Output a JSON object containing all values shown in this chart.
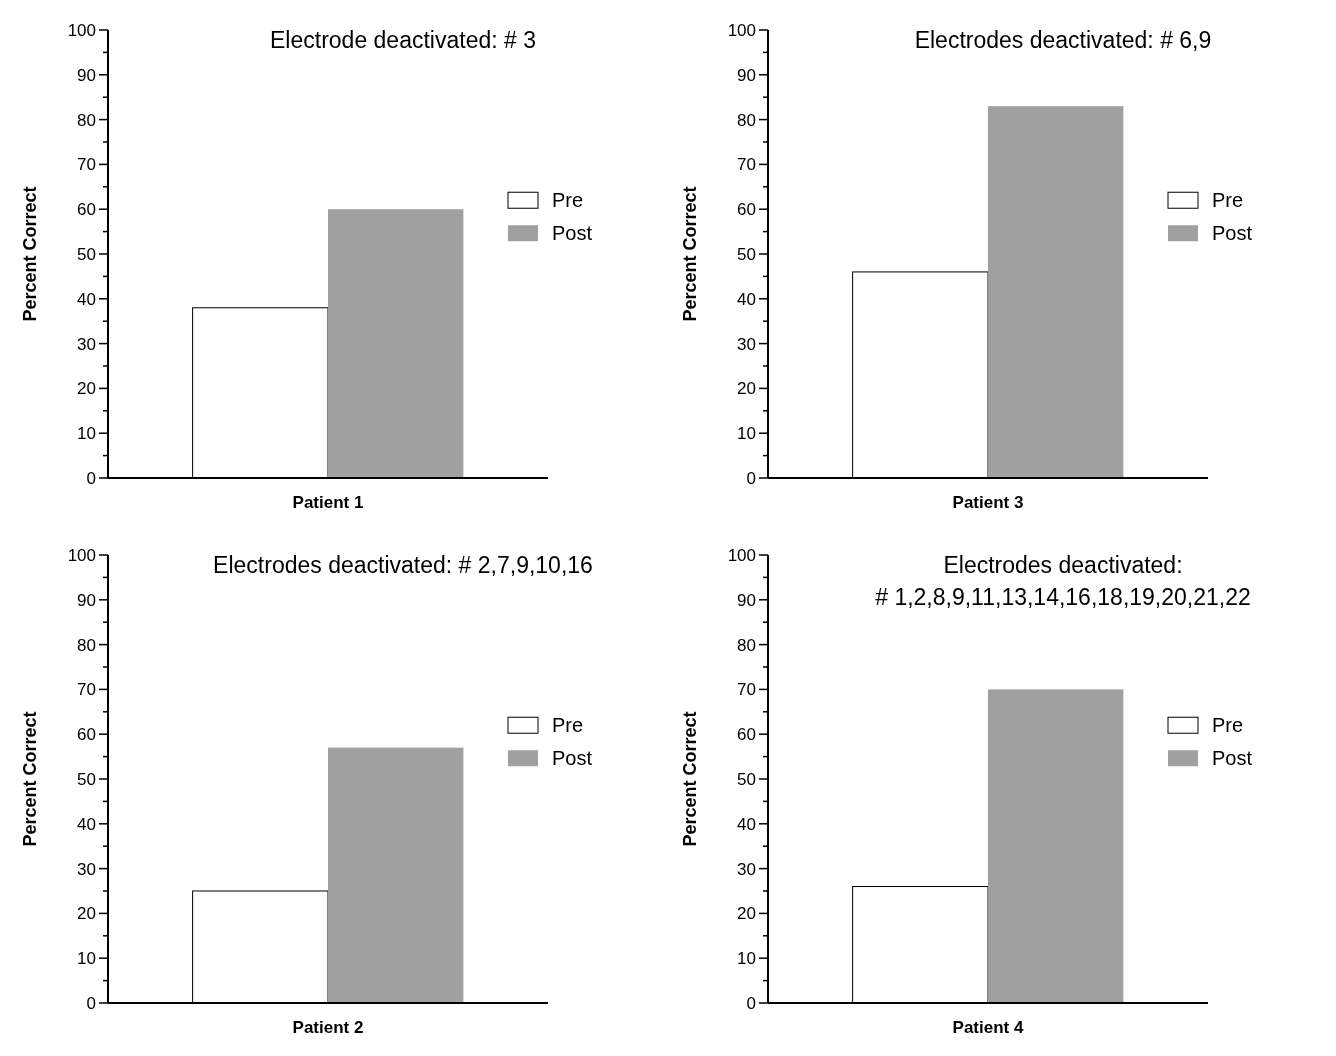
{
  "chart_data": [
    {
      "type": "bar",
      "title": "Electrode deactivated: # 3",
      "categories": [
        "Patient 1"
      ],
      "ylabel": "Percent Correct",
      "ylim": [
        0,
        100
      ],
      "yticks": [
        0,
        {
          "value": 5,
          "label": null
        },
        10,
        {
          "value": 15,
          "label": null
        },
        20,
        {
          "value": 25,
          "label": null
        },
        30,
        {
          "value": 35,
          "label": null
        },
        40,
        {
          "value": 45,
          "label": null
        },
        50,
        {
          "value": 55,
          "label": null
        },
        60,
        {
          "value": 65,
          "label": null
        },
        70,
        {
          "value": 75,
          "label": null
        },
        80,
        {
          "value": 85,
          "label": null
        },
        90,
        {
          "value": 95,
          "label": null
        },
        100
      ],
      "legend": "right",
      "grid": false,
      "series": [
        {
          "name": "Pre",
          "color": "#ffffff",
          "values": [
            38
          ]
        },
        {
          "name": "Post",
          "color": "#a0a0a0",
          "values": [
            60
          ]
        }
      ]
    },
    {
      "type": "bar",
      "title": "Electrodes deactivated: # 6,9",
      "categories": [
        "Patient 3"
      ],
      "ylabel": "Percent Correct",
      "ylim": [
        0,
        100
      ],
      "yticks": [
        0,
        {
          "value": 5,
          "label": null
        },
        10,
        {
          "value": 15,
          "label": null
        },
        20,
        {
          "value": 25,
          "label": null
        },
        30,
        {
          "value": 35,
          "label": null
        },
        40,
        {
          "value": 45,
          "label": null
        },
        50,
        {
          "value": 55,
          "label": null
        },
        60,
        {
          "value": 65,
          "label": null
        },
        70,
        {
          "value": 75,
          "label": null
        },
        80,
        {
          "value": 85,
          "label": null
        },
        90,
        {
          "value": 95,
          "label": null
        },
        100
      ],
      "legend": "right",
      "grid": false,
      "series": [
        {
          "name": "Pre",
          "color": "#ffffff",
          "values": [
            46
          ]
        },
        {
          "name": "Post",
          "color": "#a0a0a0",
          "values": [
            83
          ]
        }
      ]
    },
    {
      "type": "bar",
      "title": "Electrodes deactivated: # 2,7,9,10,16",
      "categories": [
        "Patient 2"
      ],
      "ylabel": "Percent Correct",
      "ylim": [
        0,
        100
      ],
      "yticks": [
        0,
        {
          "value": 5,
          "label": null
        },
        10,
        {
          "value": 15,
          "label": null
        },
        20,
        {
          "value": 25,
          "label": null
        },
        30,
        {
          "value": 35,
          "label": null
        },
        40,
        {
          "value": 45,
          "label": null
        },
        50,
        {
          "value": 55,
          "label": null
        },
        60,
        {
          "value": 65,
          "label": null
        },
        70,
        {
          "value": 75,
          "label": null
        },
        80,
        {
          "value": 85,
          "label": null
        },
        90,
        {
          "value": 95,
          "label": null
        },
        100
      ],
      "legend": "right",
      "grid": false,
      "series": [
        {
          "name": "Pre",
          "color": "#ffffff",
          "values": [
            25
          ]
        },
        {
          "name": "Post",
          "color": "#a0a0a0",
          "values": [
            57
          ]
        }
      ]
    },
    {
      "type": "bar",
      "title": "Electrodes deactivated:\n# 1,2,8,9,11,13,14,16,18,19,20,21,22",
      "categories": [
        "Patient 4"
      ],
      "ylabel": "Percent Correct",
      "ylim": [
        0,
        100
      ],
      "yticks": [
        0,
        {
          "value": 5,
          "label": null
        },
        10,
        {
          "value": 15,
          "label": null
        },
        20,
        {
          "value": 25,
          "label": null
        },
        30,
        {
          "value": 35,
          "label": null
        },
        40,
        {
          "value": 45,
          "label": null
        },
        50,
        {
          "value": 55,
          "label": null
        },
        60,
        {
          "value": 65,
          "label": null
        },
        70,
        {
          "value": 75,
          "label": null
        },
        80,
        {
          "value": 85,
          "label": null
        },
        90,
        {
          "value": 95,
          "label": null
        },
        100
      ],
      "legend": "right",
      "grid": false,
      "series": [
        {
          "name": "Pre",
          "color": "#ffffff",
          "values": [
            26
          ]
        },
        {
          "name": "Post",
          "color": "#a0a0a0",
          "values": [
            70
          ]
        }
      ]
    }
  ]
}
